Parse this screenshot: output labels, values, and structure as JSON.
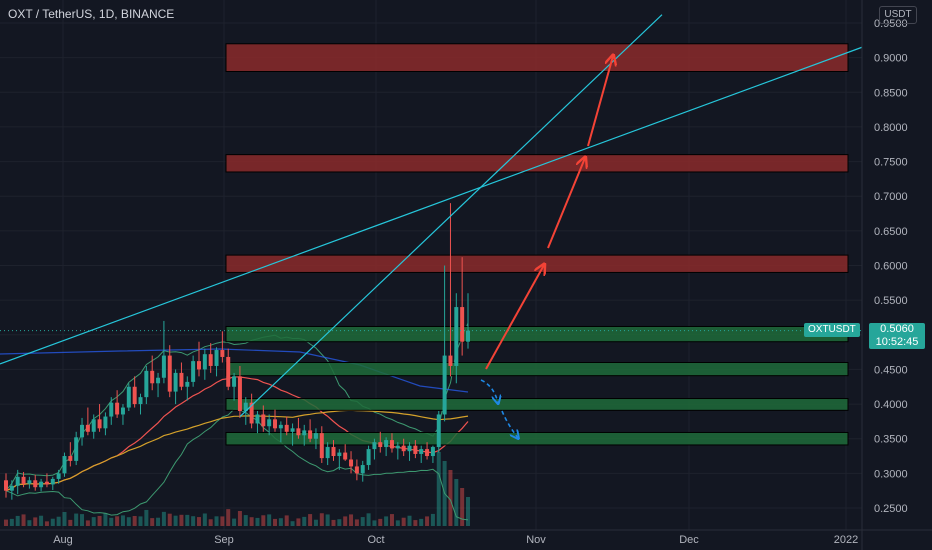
{
  "header": {
    "title": "OXT / TetherUS, 1D, BINANCE"
  },
  "price_axis": {
    "unit_button": "USDT",
    "ticks": [
      "0.9500",
      "0.9000",
      "0.8500",
      "0.8000",
      "0.7500",
      "0.7000",
      "0.6500",
      "0.6000",
      "0.5500",
      "0.5000",
      "0.4500",
      "0.4000",
      "0.3500",
      "0.3000",
      "0.2500"
    ]
  },
  "time_axis": {
    "ticks": [
      "Aug",
      "Sep",
      "Oct",
      "Nov",
      "Dec",
      "2022"
    ]
  },
  "last_price": {
    "symbol": "OXTUSDT",
    "price": "0.5060",
    "countdown": "10:52:45"
  },
  "colors": {
    "background": "#131722",
    "up": "#26a69a",
    "down": "#ef5350",
    "resistance_zone": "#8b2a2a",
    "support_zone": "#1e6b3a",
    "trendline": "#26c6da",
    "arrow_up": "#f44336",
    "arrow_down": "#1e88e5"
  },
  "chart_data": {
    "type": "candlestick",
    "symbol": "OXT / TetherUS",
    "interval": "1D",
    "exchange": "BINANCE",
    "ylim": [
      0.23,
      0.97
    ],
    "resistance_zones": [
      [
        0.88,
        0.92
      ],
      [
        0.735,
        0.76
      ],
      [
        0.59,
        0.615
      ]
    ],
    "support_zones": [
      [
        0.49,
        0.512
      ],
      [
        0.441,
        0.46
      ],
      [
        0.391,
        0.408
      ],
      [
        0.341,
        0.359
      ]
    ],
    "last_price": 0.506,
    "candles_ohlc": [
      [
        0.29,
        0.3,
        0.265,
        0.275
      ],
      [
        0.275,
        0.29,
        0.262,
        0.282
      ],
      [
        0.282,
        0.305,
        0.27,
        0.295
      ],
      [
        0.295,
        0.302,
        0.28,
        0.285
      ],
      [
        0.285,
        0.295,
        0.278,
        0.29
      ],
      [
        0.29,
        0.298,
        0.275,
        0.28
      ],
      [
        0.28,
        0.292,
        0.274,
        0.288
      ],
      [
        0.288,
        0.3,
        0.28,
        0.284
      ],
      [
        0.284,
        0.295,
        0.276,
        0.292
      ],
      [
        0.292,
        0.305,
        0.285,
        0.3
      ],
      [
        0.3,
        0.33,
        0.295,
        0.325
      ],
      [
        0.325,
        0.345,
        0.31,
        0.318
      ],
      [
        0.318,
        0.36,
        0.312,
        0.352
      ],
      [
        0.352,
        0.38,
        0.34,
        0.37
      ],
      [
        0.37,
        0.395,
        0.355,
        0.36
      ],
      [
        0.36,
        0.385,
        0.35,
        0.378
      ],
      [
        0.378,
        0.4,
        0.36,
        0.365
      ],
      [
        0.365,
        0.388,
        0.355,
        0.382
      ],
      [
        0.382,
        0.41,
        0.37,
        0.402
      ],
      [
        0.402,
        0.42,
        0.38,
        0.385
      ],
      [
        0.385,
        0.4,
        0.37,
        0.395
      ],
      [
        0.395,
        0.43,
        0.39,
        0.425
      ],
      [
        0.425,
        0.44,
        0.395,
        0.4
      ],
      [
        0.4,
        0.415,
        0.385,
        0.41
      ],
      [
        0.41,
        0.455,
        0.4,
        0.448
      ],
      [
        0.448,
        0.47,
        0.42,
        0.43
      ],
      [
        0.43,
        0.445,
        0.41,
        0.438
      ],
      [
        0.438,
        0.52,
        0.43,
        0.47
      ],
      [
        0.47,
        0.485,
        0.41,
        0.418
      ],
      [
        0.418,
        0.45,
        0.4,
        0.445
      ],
      [
        0.445,
        0.46,
        0.42,
        0.425
      ],
      [
        0.425,
        0.44,
        0.405,
        0.432
      ],
      [
        0.432,
        0.47,
        0.425,
        0.462
      ],
      [
        0.462,
        0.49,
        0.44,
        0.45
      ],
      [
        0.45,
        0.48,
        0.435,
        0.472
      ],
      [
        0.472,
        0.488,
        0.445,
        0.455
      ],
      [
        0.455,
        0.482,
        0.44,
        0.478
      ],
      [
        0.478,
        0.505,
        0.46,
        0.468
      ],
      [
        0.468,
        0.48,
        0.42,
        0.425
      ],
      [
        0.425,
        0.445,
        0.405,
        0.44
      ],
      [
        0.44,
        0.455,
        0.38,
        0.39
      ],
      [
        0.39,
        0.41,
        0.37,
        0.402
      ],
      [
        0.402,
        0.415,
        0.365,
        0.372
      ],
      [
        0.372,
        0.39,
        0.358,
        0.385
      ],
      [
        0.385,
        0.398,
        0.36,
        0.368
      ],
      [
        0.368,
        0.385,
        0.355,
        0.378
      ],
      [
        0.378,
        0.392,
        0.36,
        0.365
      ],
      [
        0.365,
        0.375,
        0.345,
        0.37
      ],
      [
        0.37,
        0.382,
        0.355,
        0.36
      ],
      [
        0.36,
        0.372,
        0.34,
        0.365
      ],
      [
        0.365,
        0.38,
        0.35,
        0.355
      ],
      [
        0.355,
        0.37,
        0.34,
        0.362
      ],
      [
        0.362,
        0.378,
        0.345,
        0.35
      ],
      [
        0.35,
        0.365,
        0.335,
        0.358
      ],
      [
        0.358,
        0.368,
        0.315,
        0.322
      ],
      [
        0.322,
        0.345,
        0.312,
        0.338
      ],
      [
        0.338,
        0.348,
        0.318,
        0.325
      ],
      [
        0.325,
        0.335,
        0.305,
        0.33
      ],
      [
        0.33,
        0.342,
        0.318,
        0.32
      ],
      [
        0.32,
        0.332,
        0.3,
        0.31
      ],
      [
        0.31,
        0.32,
        0.29,
        0.3
      ],
      [
        0.3,
        0.318,
        0.288,
        0.312
      ],
      [
        0.312,
        0.34,
        0.305,
        0.335
      ],
      [
        0.335,
        0.35,
        0.32,
        0.345
      ],
      [
        0.345,
        0.36,
        0.33,
        0.338
      ],
      [
        0.338,
        0.352,
        0.325,
        0.348
      ],
      [
        0.348,
        0.358,
        0.33,
        0.336
      ],
      [
        0.336,
        0.345,
        0.32,
        0.34
      ],
      [
        0.34,
        0.35,
        0.325,
        0.332
      ],
      [
        0.332,
        0.345,
        0.318,
        0.34
      ],
      [
        0.34,
        0.348,
        0.322,
        0.328
      ],
      [
        0.328,
        0.34,
        0.315,
        0.335
      ],
      [
        0.335,
        0.345,
        0.32,
        0.325
      ],
      [
        0.325,
        0.34,
        0.315,
        0.338
      ],
      [
        0.338,
        0.39,
        0.33,
        0.385
      ],
      [
        0.385,
        0.6,
        0.375,
        0.47
      ],
      [
        0.47,
        0.69,
        0.44,
        0.455
      ],
      [
        0.455,
        0.56,
        0.43,
        0.54
      ],
      [
        0.54,
        0.612,
        0.47,
        0.49
      ],
      [
        0.49,
        0.56,
        0.48,
        0.506
      ]
    ]
  }
}
